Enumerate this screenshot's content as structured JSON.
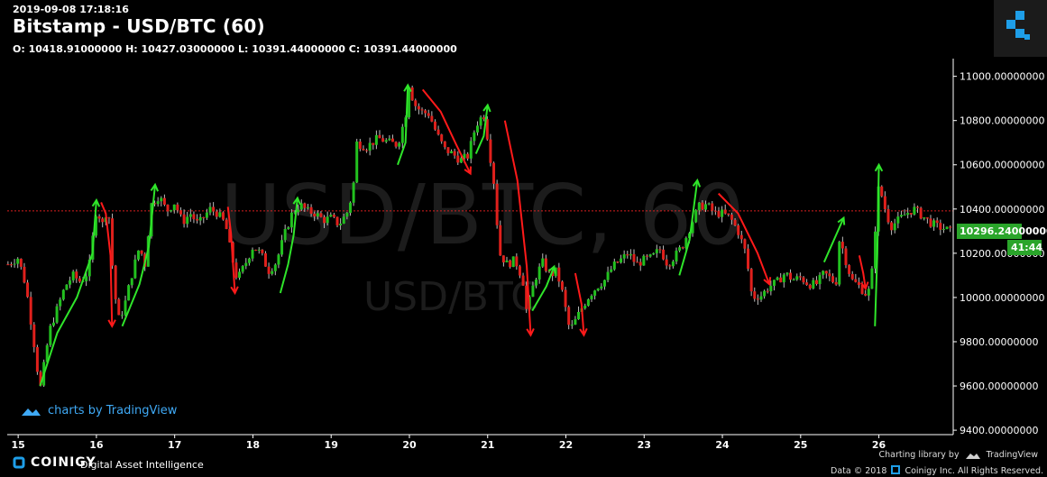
{
  "header": {
    "timestamp": "2019-09-08 17:18:16",
    "title": "Bitstamp - USD/BTC (60)",
    "ohlc_line": "O: 10418.91000000 H: 10427.03000000 L: 10391.44000000 C: 10391.44000000"
  },
  "watermark": {
    "big": "USD/BTC, 60",
    "small": "USD/BTC"
  },
  "branding": {
    "tv_badge": "charts by TradingView",
    "coinigy": "COINIGY",
    "tagline": "Digital Asset Intelligence",
    "charting_library": "Charting library by",
    "tradingview": "TradingView",
    "copyright": "Data © 2018",
    "copyright_rest": "Coinigy Inc. All Rights Reserved."
  },
  "price_tags": {
    "last_price": "10296.24000000",
    "countdown": "41:44"
  },
  "colors": {
    "up": "#22c11f",
    "down": "#e0201c",
    "annot_up": "#2fe52a",
    "annot_down": "#ff1a1a",
    "axis": "#ffffff",
    "tag_bg": "#2aa52a",
    "ref_line": "#d81f1f",
    "accent": "#3fa9f5"
  },
  "chart_data": {
    "type": "candlestick",
    "title": "Bitstamp - USD/BTC (60)",
    "ylim": [
      9380,
      11080
    ],
    "y_ticks": [
      {
        "v": 9400,
        "label": "9400.00000000"
      },
      {
        "v": 9600,
        "label": "9600.00000000"
      },
      {
        "v": 9800,
        "label": "9800.00000000"
      },
      {
        "v": 10000,
        "label": "10000.00000000"
      },
      {
        "v": 10200,
        "label": "10200.00000000"
      },
      {
        "v": 10400,
        "label": "10400.00000000"
      },
      {
        "v": 10600,
        "label": "10600.00000000"
      },
      {
        "v": 10800,
        "label": "10800.00000000"
      },
      {
        "v": 11000,
        "label": "11000.00000000"
      }
    ],
    "x_range": [
      14.86,
      26.95
    ],
    "x_ticks": [
      {
        "v": 15,
        "label": "15"
      },
      {
        "v": 16,
        "label": "16"
      },
      {
        "v": 17,
        "label": "17"
      },
      {
        "v": 18,
        "label": "18"
      },
      {
        "v": 19,
        "label": "19"
      },
      {
        "v": 20,
        "label": "20"
      },
      {
        "v": 21,
        "label": "21"
      },
      {
        "v": 22,
        "label": "22"
      },
      {
        "v": 23,
        "label": "23"
      },
      {
        "v": 24,
        "label": "24"
      },
      {
        "v": 25,
        "label": "25"
      },
      {
        "v": 26,
        "label": "26"
      }
    ],
    "reference_line": 10391.44,
    "last_price": 10296.24,
    "close_path": [
      [
        14.87,
        10150
      ],
      [
        15.0,
        10180
      ],
      [
        15.1,
        10050
      ],
      [
        15.2,
        9800
      ],
      [
        15.28,
        9580
      ],
      [
        15.4,
        9850
      ],
      [
        15.5,
        9950
      ],
      [
        15.6,
        10050
      ],
      [
        15.7,
        10100
      ],
      [
        15.8,
        10070
      ],
      [
        15.9,
        10120
      ],
      [
        16.0,
        10400
      ],
      [
        16.08,
        10330
      ],
      [
        16.15,
        10420
      ],
      [
        16.22,
        10060
      ],
      [
        16.28,
        9900
      ],
      [
        16.35,
        9950
      ],
      [
        16.45,
        10100
      ],
      [
        16.55,
        10230
      ],
      [
        16.62,
        10150
      ],
      [
        16.7,
        10420
      ],
      [
        16.8,
        10460
      ],
      [
        16.9,
        10390
      ],
      [
        17.0,
        10430
      ],
      [
        17.1,
        10340
      ],
      [
        17.2,
        10380
      ],
      [
        17.3,
        10330
      ],
      [
        17.45,
        10400
      ],
      [
        17.55,
        10380
      ],
      [
        17.65,
        10330
      ],
      [
        17.72,
        10200
      ],
      [
        17.8,
        10080
      ],
      [
        17.9,
        10150
      ],
      [
        18.0,
        10230
      ],
      [
        18.1,
        10200
      ],
      [
        18.2,
        10120
      ],
      [
        18.3,
        10160
      ],
      [
        18.4,
        10280
      ],
      [
        18.5,
        10380
      ],
      [
        18.6,
        10420
      ],
      [
        18.7,
        10390
      ],
      [
        18.8,
        10380
      ],
      [
        18.9,
        10350
      ],
      [
        19.0,
        10360
      ],
      [
        19.1,
        10330
      ],
      [
        19.2,
        10380
      ],
      [
        19.28,
        10480
      ],
      [
        19.32,
        10700
      ],
      [
        19.45,
        10680
      ],
      [
        19.6,
        10720
      ],
      [
        19.75,
        10700
      ],
      [
        19.85,
        10690
      ],
      [
        19.95,
        10820
      ],
      [
        20.0,
        10980
      ],
      [
        20.05,
        10880
      ],
      [
        20.15,
        10840
      ],
      [
        20.25,
        10830
      ],
      [
        20.35,
        10740
      ],
      [
        20.45,
        10670
      ],
      [
        20.55,
        10650
      ],
      [
        20.65,
        10620
      ],
      [
        20.75,
        10640
      ],
      [
        20.85,
        10780
      ],
      [
        20.95,
        10830
      ],
      [
        21.0,
        10720
      ],
      [
        21.08,
        10520
      ],
      [
        21.15,
        10200
      ],
      [
        21.25,
        10150
      ],
      [
        21.35,
        10170
      ],
      [
        21.45,
        10080
      ],
      [
        21.5,
        9930
      ],
      [
        21.6,
        10080
      ],
      [
        21.7,
        10160
      ],
      [
        21.8,
        10100
      ],
      [
        21.88,
        10120
      ],
      [
        21.95,
        10030
      ],
      [
        22.05,
        9850
      ],
      [
        22.1,
        9880
      ],
      [
        22.2,
        9950
      ],
      [
        22.3,
        10010
      ],
      [
        22.4,
        10050
      ],
      [
        22.5,
        10080
      ],
      [
        22.6,
        10140
      ],
      [
        22.7,
        10170
      ],
      [
        22.8,
        10200
      ],
      [
        22.9,
        10150
      ],
      [
        23.0,
        10170
      ],
      [
        23.1,
        10180
      ],
      [
        23.2,
        10220
      ],
      [
        23.3,
        10150
      ],
      [
        23.4,
        10190
      ],
      [
        23.5,
        10240
      ],
      [
        23.6,
        10330
      ],
      [
        23.7,
        10410
      ],
      [
        23.8,
        10420
      ],
      [
        23.9,
        10380
      ],
      [
        24.0,
        10380
      ],
      [
        24.1,
        10360
      ],
      [
        24.2,
        10300
      ],
      [
        24.3,
        10200
      ],
      [
        24.38,
        10000
      ],
      [
        24.5,
        10010
      ],
      [
        24.6,
        10050
      ],
      [
        24.7,
        10070
      ],
      [
        24.8,
        10110
      ],
      [
        24.9,
        10080
      ],
      [
        25.0,
        10090
      ],
      [
        25.1,
        10060
      ],
      [
        25.2,
        10060
      ],
      [
        25.3,
        10110
      ],
      [
        25.4,
        10080
      ],
      [
        25.45,
        10060
      ],
      [
        25.5,
        10280
      ],
      [
        25.55,
        10200
      ],
      [
        25.65,
        10080
      ],
      [
        25.75,
        10050
      ],
      [
        25.85,
        10010
      ],
      [
        25.9,
        10060
      ],
      [
        25.95,
        10300
      ],
      [
        26.0,
        10510
      ],
      [
        26.08,
        10400
      ],
      [
        26.15,
        10320
      ],
      [
        26.25,
        10350
      ],
      [
        26.35,
        10380
      ],
      [
        26.45,
        10400
      ],
      [
        26.55,
        10370
      ],
      [
        26.65,
        10340
      ],
      [
        26.75,
        10320
      ],
      [
        26.85,
        10310
      ],
      [
        26.92,
        10296
      ]
    ],
    "annotations": [
      {
        "dir": "up",
        "pts": [
          [
            15.28,
            9600
          ],
          [
            15.5,
            9840
          ],
          [
            15.75,
            10000
          ],
          [
            15.95,
            10200
          ],
          [
            16.0,
            10440
          ]
        ]
      },
      {
        "dir": "down",
        "pts": [
          [
            16.06,
            10430
          ],
          [
            16.12,
            10380
          ],
          [
            16.18,
            10190
          ],
          [
            16.2,
            9870
          ]
        ]
      },
      {
        "dir": "up",
        "pts": [
          [
            16.33,
            9870
          ],
          [
            16.55,
            10060
          ],
          [
            16.67,
            10230
          ],
          [
            16.75,
            10510
          ]
        ]
      },
      {
        "dir": "down",
        "pts": [
          [
            17.68,
            10410
          ],
          [
            17.72,
            10290
          ],
          [
            17.77,
            10020
          ]
        ]
      },
      {
        "dir": "up",
        "pts": [
          [
            18.35,
            10020
          ],
          [
            18.45,
            10150
          ],
          [
            18.52,
            10280
          ],
          [
            18.57,
            10450
          ]
        ]
      },
      {
        "dir": "up",
        "pts": [
          [
            19.85,
            10600
          ],
          [
            19.95,
            10700
          ],
          [
            19.98,
            10960
          ]
        ]
      },
      {
        "dir": "down",
        "pts": [
          [
            20.17,
            10940
          ],
          [
            20.4,
            10840
          ],
          [
            20.6,
            10690
          ],
          [
            20.78,
            10560
          ]
        ]
      },
      {
        "dir": "up",
        "pts": [
          [
            20.85,
            10650
          ],
          [
            20.95,
            10730
          ],
          [
            21.0,
            10870
          ]
        ]
      },
      {
        "dir": "down",
        "pts": [
          [
            21.22,
            10800
          ],
          [
            21.38,
            10530
          ],
          [
            21.5,
            10140
          ],
          [
            21.55,
            9830
          ]
        ]
      },
      {
        "dir": "up",
        "pts": [
          [
            21.57,
            9940
          ],
          [
            21.75,
            10050
          ],
          [
            21.85,
            10140
          ]
        ]
      },
      {
        "dir": "down",
        "pts": [
          [
            22.12,
            10110
          ],
          [
            22.2,
            9970
          ],
          [
            22.23,
            9830
          ]
        ]
      },
      {
        "dir": "up",
        "pts": [
          [
            23.45,
            10100
          ],
          [
            23.58,
            10260
          ],
          [
            23.68,
            10530
          ]
        ]
      },
      {
        "dir": "down",
        "pts": [
          [
            23.95,
            10470
          ],
          [
            24.2,
            10380
          ],
          [
            24.45,
            10200
          ],
          [
            24.6,
            10060
          ]
        ]
      },
      {
        "dir": "up",
        "pts": [
          [
            25.3,
            10160
          ],
          [
            25.45,
            10280
          ],
          [
            25.55,
            10360
          ]
        ]
      },
      {
        "dir": "down",
        "pts": [
          [
            25.75,
            10190
          ],
          [
            25.8,
            10110
          ],
          [
            25.83,
            10040
          ]
        ]
      },
      {
        "dir": "up",
        "pts": [
          [
            25.95,
            9870
          ],
          [
            25.98,
            10200
          ],
          [
            26.0,
            10600
          ]
        ]
      }
    ]
  }
}
